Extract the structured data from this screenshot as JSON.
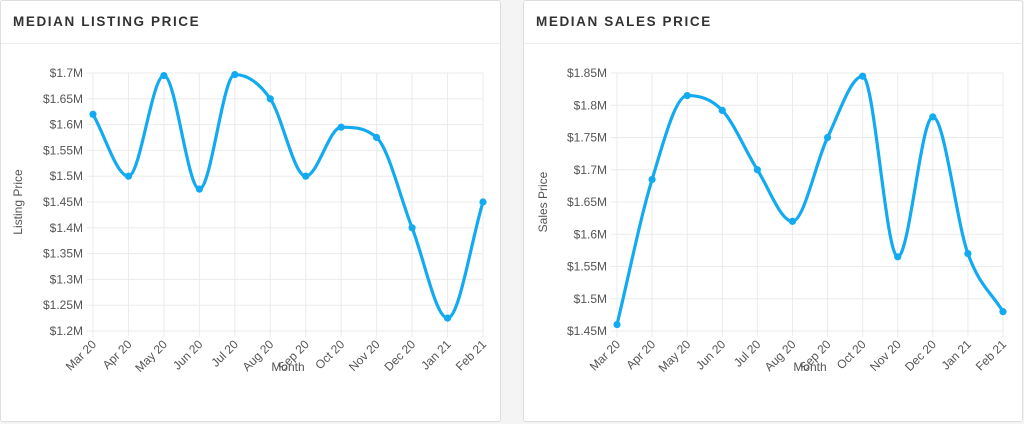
{
  "chart_data": [
    {
      "type": "line",
      "title": "MEDIAN LISTING PRICE",
      "xlabel": "Month",
      "ylabel": "Listing Price",
      "categories": [
        "Mar 20",
        "Apr 20",
        "May 20",
        "Jun 20",
        "Jul 20",
        "Aug 20",
        "Sep 20",
        "Oct 20",
        "Nov 20",
        "Dec 20",
        "Jan 21",
        "Feb 21"
      ],
      "values": [
        1.62,
        1.5,
        1.695,
        1.475,
        1.697,
        1.65,
        1.5,
        1.595,
        1.575,
        1.4,
        1.225,
        1.45
      ],
      "ylim": [
        1.2,
        1.7
      ],
      "yticks": [
        1.2,
        1.25,
        1.3,
        1.35,
        1.4,
        1.45,
        1.5,
        1.55,
        1.6,
        1.65,
        1.7
      ],
      "ytick_labels": [
        "$1.2M",
        "$1.25M",
        "$1.3M",
        "$1.35M",
        "$1.4M",
        "$1.45M",
        "$1.5M",
        "$1.55M",
        "$1.6M",
        "$1.65M",
        "$1.7M"
      ],
      "grid": true,
      "color": "#12aaf0"
    },
    {
      "type": "line",
      "title": "MEDIAN SALES PRICE",
      "xlabel": "Month",
      "ylabel": "Sales Price",
      "categories": [
        "Mar 20",
        "Apr 20",
        "May 20",
        "Jun 20",
        "Jul 20",
        "Aug 20",
        "Sep 20",
        "Oct 20",
        "Nov 20",
        "Dec 20",
        "Jan 21",
        "Feb 21"
      ],
      "values": [
        1.46,
        1.685,
        1.815,
        1.792,
        1.7,
        1.62,
        1.75,
        1.845,
        1.565,
        1.782,
        1.57,
        1.48
      ],
      "ylim": [
        1.45,
        1.85
      ],
      "yticks": [
        1.45,
        1.5,
        1.55,
        1.6,
        1.65,
        1.7,
        1.75,
        1.8,
        1.85
      ],
      "ytick_labels": [
        "$1.45M",
        "$1.5M",
        "$1.55M",
        "$1.6M",
        "$1.65M",
        "$1.7M",
        "$1.75M",
        "$1.8M",
        "$1.85M"
      ],
      "grid": true,
      "color": "#12aaf0"
    }
  ]
}
